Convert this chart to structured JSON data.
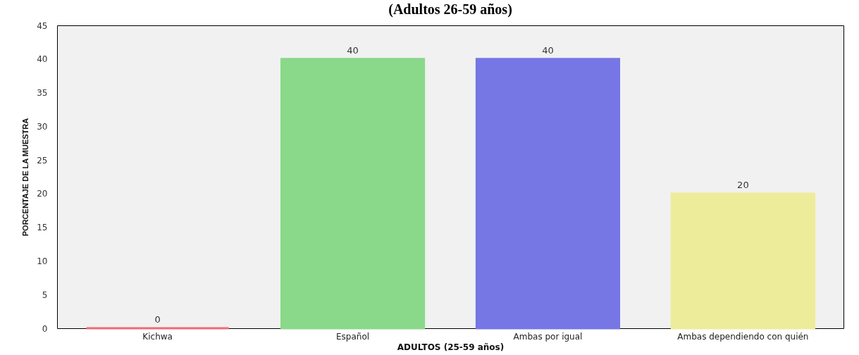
{
  "chart_data": {
    "type": "bar",
    "title": "(Adultos 26-59 años)",
    "xlabel": "ADULTOS (25-59 años)",
    "ylabel": "PORCENTAJE DE LA MUESTRA",
    "categories": [
      "Kichwa",
      "Español",
      "Ambas por igual",
      "Ambas dependiendo con quién"
    ],
    "values": [
      0,
      40,
      40,
      20
    ],
    "colors": [
      "#f06a78",
      "#8ad88a",
      "#7676e4",
      "#ecec9a"
    ],
    "ylim": [
      0,
      45
    ],
    "yticks": [
      0,
      5,
      10,
      15,
      20,
      25,
      30,
      35,
      40,
      45
    ],
    "data_labels": true
  }
}
